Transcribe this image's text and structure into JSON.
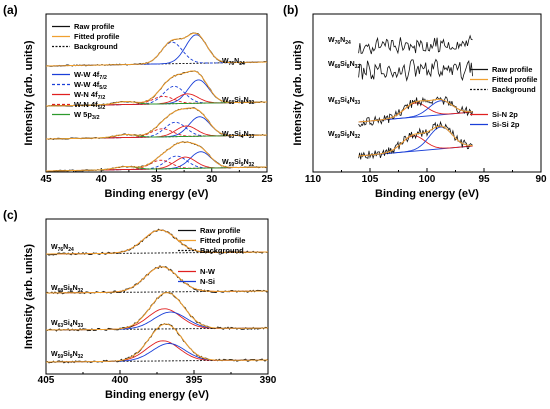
{
  "colors": {
    "raw": "#111111",
    "fitted": "#f0a030",
    "background_line": "#111111",
    "ww72": "#1a3fd8",
    "ww52": "#1a3fd8",
    "wn72": "#e02020",
    "wn52": "#e02020",
    "w5p": "#2d9a2d",
    "sin": "#e02020",
    "sisi": "#1a3fd8",
    "nw": "#e02020",
    "nsi": "#1a3fd8"
  },
  "chart_data": [
    {
      "type": "line",
      "panel": "(a)",
      "xlabel": "Binding energy (eV)",
      "ylabel": "Intensity (arb. units)",
      "xlim": [
        45,
        25
      ],
      "x_ticks": [
        "45",
        "40",
        "35",
        "30",
        "25"
      ],
      "legend_top": [
        "Raw profile",
        "Fitted profile",
        "Background"
      ],
      "legend_components": [
        "W-W 4f7/2",
        "W-W 4f5/2",
        "W-N 4f7/2",
        "W-N 4f5/2",
        "W 5p3/2"
      ],
      "legend_components_display": [
        {
          "main": "W-W 4f",
          "sub": "7/2"
        },
        {
          "main": "W-W 4f",
          "sub": "5/2"
        },
        {
          "main": "W-N 4f",
          "sub": "7/2"
        },
        {
          "main": "W-N 4f",
          "sub": "5/2"
        },
        {
          "main": "W 5p",
          "sub": "3/2"
        }
      ],
      "series": [
        {
          "name": "W76N24",
          "label": [
            {
              "t": "W"
            },
            {
              "t": "76",
              "s": 1
            },
            {
              "t": "N"
            },
            {
              "t": "24",
              "s": 1
            }
          ],
          "peaks": [
            {
              "component": "W-W 4f7/2",
              "center": 31.4,
              "height": 0.95
            },
            {
              "component": "W-W 4f5/2",
              "center": 33.6,
              "height": 0.72
            }
          ]
        },
        {
          "name": "W68Si8N32",
          "label": [
            {
              "t": "W"
            },
            {
              "t": "68",
              "s": 1
            },
            {
              "t": "Si"
            },
            {
              "t": "8",
              "s": 1
            },
            {
              "t": "N"
            },
            {
              "t": "32",
              "s": 1
            }
          ],
          "peaks": [
            {
              "component": "W-W 4f7/2",
              "center": 31.2,
              "height": 0.78
            },
            {
              "component": "W-W 4f5/2",
              "center": 33.4,
              "height": 0.58
            },
            {
              "component": "W-N 4f7/2",
              "center": 32.2,
              "height": 0.32
            },
            {
              "component": "W-N 4f5/2",
              "center": 34.4,
              "height": 0.25
            },
            {
              "component": "W 5p3/2",
              "center": 37.8,
              "height": 0.1
            }
          ]
        },
        {
          "name": "W63Si4N33",
          "label": [
            {
              "t": "W"
            },
            {
              "t": "63",
              "s": 1
            },
            {
              "t": "Si"
            },
            {
              "t": "4",
              "s": 1
            },
            {
              "t": "N"
            },
            {
              "t": "33",
              "s": 1
            }
          ],
          "peaks": [
            {
              "component": "W-W 4f7/2",
              "center": 31.1,
              "height": 0.65
            },
            {
              "component": "W-W 4f5/2",
              "center": 33.3,
              "height": 0.48
            },
            {
              "component": "W-N 4f7/2",
              "center": 32.3,
              "height": 0.35
            },
            {
              "component": "W-N 4f5/2",
              "center": 34.5,
              "height": 0.27
            },
            {
              "component": "W 5p3/2",
              "center": 37.8,
              "height": 0.1
            }
          ]
        },
        {
          "name": "W59Si9N32",
          "label": [
            {
              "t": "W"
            },
            {
              "t": "59",
              "s": 1
            },
            {
              "t": "Si"
            },
            {
              "t": "9",
              "s": 1
            },
            {
              "t": "N"
            },
            {
              "t": "32",
              "s": 1
            }
          ],
          "peaks": [
            {
              "component": "W-W 4f7/2",
              "center": 31.0,
              "height": 0.55
            },
            {
              "component": "W-W 4f5/2",
              "center": 33.2,
              "height": 0.42
            },
            {
              "component": "W-N 4f7/2",
              "center": 32.4,
              "height": 0.38
            },
            {
              "component": "W-N 4f5/2",
              "center": 34.6,
              "height": 0.29
            },
            {
              "component": "W 5p3/2",
              "center": 37.8,
              "height": 0.1
            }
          ]
        }
      ]
    },
    {
      "type": "line",
      "panel": "(b)",
      "xlabel": "Binding energy (eV)",
      "ylabel": "Intensity (arb. units)",
      "xlim": [
        110,
        90
      ],
      "x_ticks": [
        "110",
        "105",
        "100",
        "95",
        "90"
      ],
      "legend": [
        "Raw profile",
        "Fitted profile",
        "Background",
        "Si-N 2p",
        "Si-Si 2p"
      ],
      "series": [
        {
          "name": "W76N24",
          "label": [
            {
              "t": "W"
            },
            {
              "t": "76",
              "s": 1
            },
            {
              "t": "N"
            },
            {
              "t": "24",
              "s": 1
            }
          ],
          "peaks": []
        },
        {
          "name": "W68Si8N32",
          "label": [
            {
              "t": "W"
            },
            {
              "t": "68",
              "s": 1
            },
            {
              "t": "Si"
            },
            {
              "t": "8",
              "s": 1
            },
            {
              "t": "N"
            },
            {
              "t": "32",
              "s": 1
            }
          ],
          "peaks": []
        },
        {
          "name": "W63Si4N33",
          "label": [
            {
              "t": "W"
            },
            {
              "t": "63",
              "s": 1
            },
            {
              "t": "Si"
            },
            {
              "t": "4",
              "s": 1
            },
            {
              "t": "N"
            },
            {
              "t": "33",
              "s": 1
            }
          ],
          "peaks": [
            {
              "component": "Si-N 2p",
              "center": 101.0,
              "height": 0.5
            },
            {
              "component": "Si-Si 2p",
              "center": 98.8,
              "height": 0.5
            }
          ]
        },
        {
          "name": "W59Si9N32",
          "label": [
            {
              "t": "W"
            },
            {
              "t": "59",
              "s": 1
            },
            {
              "t": "Si"
            },
            {
              "t": "9",
              "s": 1
            },
            {
              "t": "N"
            },
            {
              "t": "32",
              "s": 1
            }
          ],
          "peaks": [
            {
              "component": "Si-N 2p",
              "center": 101.2,
              "height": 0.55
            },
            {
              "component": "Si-Si 2p",
              "center": 98.8,
              "height": 0.78
            }
          ]
        }
      ]
    },
    {
      "type": "line",
      "panel": "(c)",
      "xlabel": "Binding energy (eV)",
      "ylabel": "Intensity (arb. units)",
      "xlim": [
        405,
        390
      ],
      "x_ticks": [
        "405",
        "400",
        "395",
        "390"
      ],
      "legend": [
        "Raw profile",
        "Fitted profile",
        "Background",
        "N-W",
        "N-Si"
      ],
      "series": [
        {
          "name": "W76N24",
          "label": [
            {
              "t": "W"
            },
            {
              "t": "76",
              "s": 1
            },
            {
              "t": "N"
            },
            {
              "t": "24",
              "s": 1
            }
          ],
          "peaks": [
            {
              "component": "N-W",
              "center": 397.3,
              "height": 0.82
            }
          ]
        },
        {
          "name": "W68Si8N32",
          "label": [
            {
              "t": "W"
            },
            {
              "t": "68",
              "s": 1
            },
            {
              "t": "Si"
            },
            {
              "t": "8",
              "s": 1
            },
            {
              "t": "N"
            },
            {
              "t": "32",
              "s": 1
            }
          ],
          "peaks": [
            {
              "component": "N-W",
              "center": 397.2,
              "height": 0.9
            }
          ]
        },
        {
          "name": "W63Si4N33",
          "label": [
            {
              "t": "W"
            },
            {
              "t": "63",
              "s": 1
            },
            {
              "t": "Si"
            },
            {
              "t": "4",
              "s": 1
            },
            {
              "t": "N"
            },
            {
              "t": "33",
              "s": 1
            }
          ],
          "peaks": [
            {
              "component": "N-W",
              "center": 397.0,
              "height": 0.72
            },
            {
              "component": "N-Si",
              "center": 396.6,
              "height": 0.6
            }
          ]
        },
        {
          "name": "W59Si9N32",
          "label": [
            {
              "t": "W"
            },
            {
              "t": "59",
              "s": 1
            },
            {
              "t": "Si"
            },
            {
              "t": "9",
              "s": 1
            },
            {
              "t": "N"
            },
            {
              "t": "32",
              "s": 1
            }
          ],
          "peaks": [
            {
              "component": "N-W",
              "center": 397.1,
              "height": 0.72
            },
            {
              "component": "N-Si",
              "center": 396.7,
              "height": 0.62
            }
          ]
        }
      ]
    }
  ]
}
